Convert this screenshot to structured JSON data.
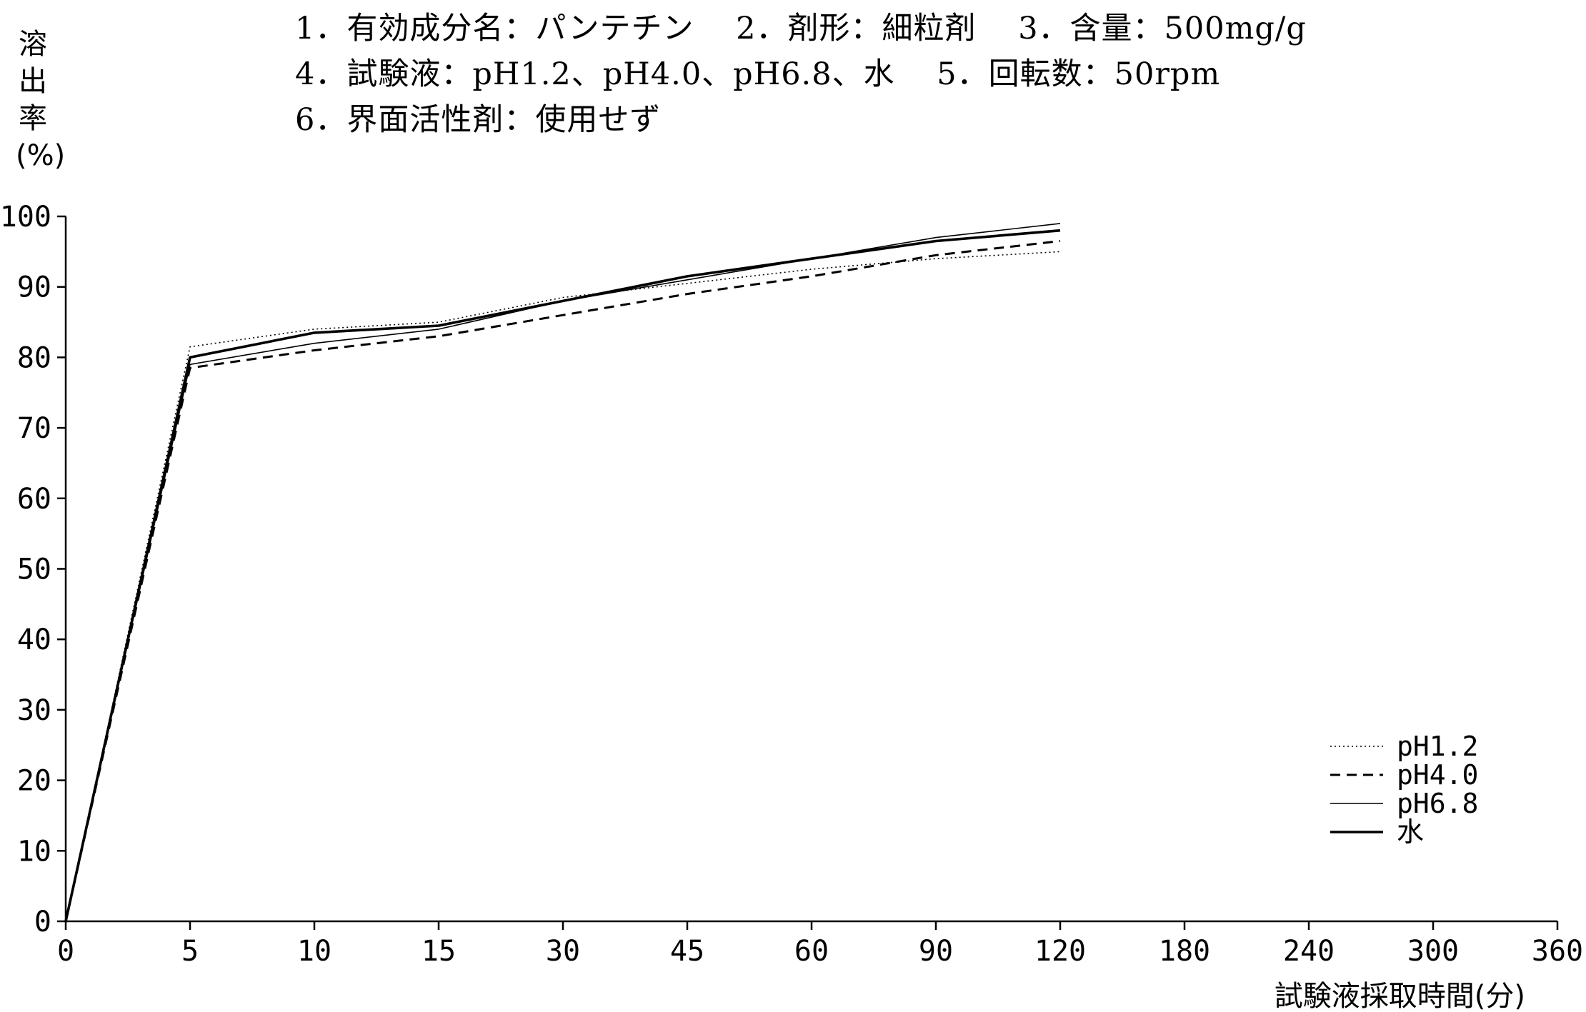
{
  "header": {
    "line1": "1．有効成分名：パンテチン　 2．剤形：細粒剤　 3．含量：500mg/g",
    "line2": "4．試験液：pH1.2、pH4.0、pH6.8、水　 5．回転数：50rpm",
    "line3": "6．界面活性剤：使用せず"
  },
  "chart_data": {
    "type": "line",
    "ylabel": "溶出率(%)",
    "ylabel_chars": [
      "溶",
      "出",
      "率",
      "(%)"
    ],
    "xlabel": "試験液採取時間(分)",
    "categories": [
      "0",
      "5",
      "10",
      "15",
      "30",
      "45",
      "60",
      "90",
      "120",
      "180",
      "240",
      "300",
      "360"
    ],
    "yticks": [
      0,
      10,
      20,
      30,
      40,
      50,
      60,
      70,
      80,
      90,
      100
    ],
    "ylim": [
      0,
      100
    ],
    "grid": false,
    "legend_position": "bottom-right",
    "series": [
      {
        "name": "pH1.2",
        "style": "dotted",
        "x": [
          "0",
          "5",
          "10",
          "15",
          "30",
          "45",
          "60",
          "90",
          "120"
        ],
        "values": [
          0,
          81.5,
          84,
          85,
          88.5,
          90.5,
          92.5,
          94,
          95
        ]
      },
      {
        "name": "pH4.0",
        "style": "dashed",
        "x": [
          "0",
          "5",
          "10",
          "15",
          "30",
          "45",
          "60",
          "90",
          "120"
        ],
        "values": [
          0,
          78.5,
          81,
          83,
          86,
          89,
          91.5,
          94.5,
          96.5
        ]
      },
      {
        "name": "pH6.8",
        "style": "thin",
        "x": [
          "0",
          "5",
          "10",
          "15",
          "30",
          "45",
          "60",
          "90",
          "120"
        ],
        "values": [
          0,
          79,
          82,
          84,
          88,
          91,
          94,
          97,
          99
        ]
      },
      {
        "name": "水",
        "style": "thick",
        "x": [
          "0",
          "5",
          "10",
          "15",
          "30",
          "45",
          "60",
          "90",
          "120"
        ],
        "values": [
          0,
          80,
          83.5,
          84.5,
          88,
          91.5,
          94,
          96.5,
          98
        ]
      }
    ]
  }
}
